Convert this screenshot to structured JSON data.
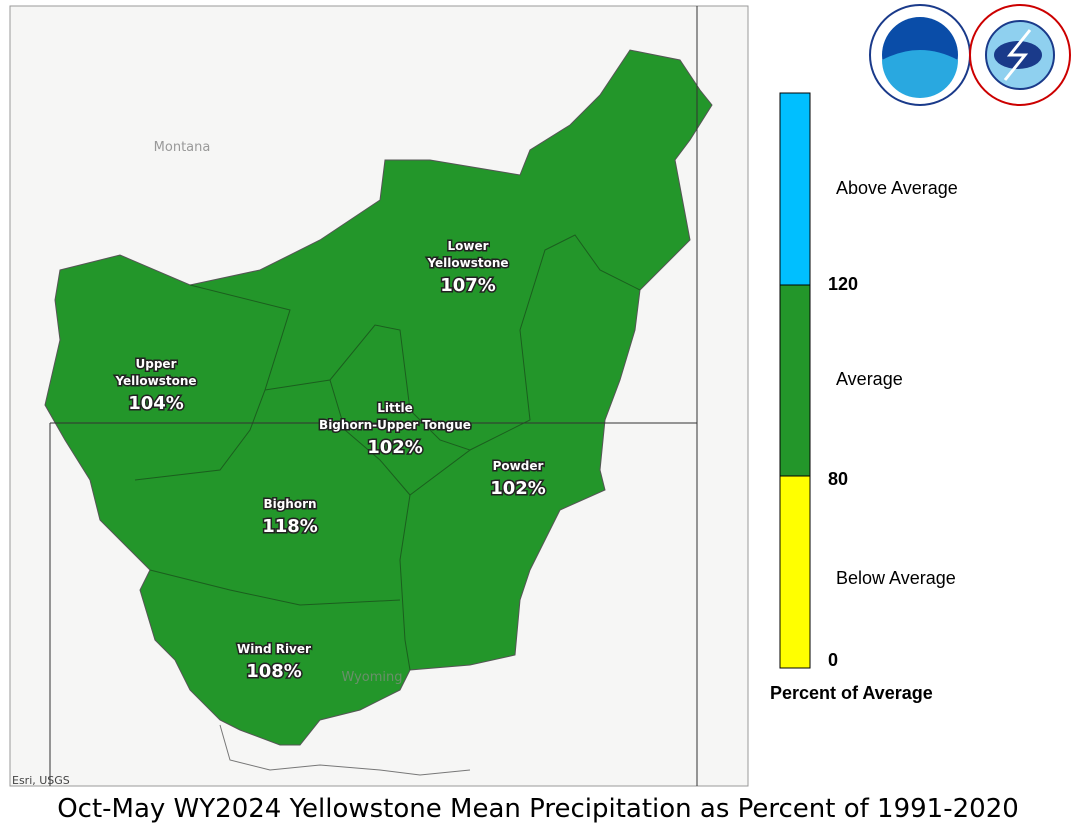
{
  "title": "Oct-May WY2024 Yellowstone Mean Precipitation as Percent of 1991-2020",
  "map": {
    "states": [
      "Montana",
      "Wyoming"
    ],
    "attribution": "Esri, USGS",
    "regions": [
      {
        "name": [
          "Lower",
          "Yellowstone"
        ],
        "value": "107%"
      },
      {
        "name": [
          "Upper",
          "Yellowstone"
        ],
        "value": "104%"
      },
      {
        "name": [
          "Little",
          "Bighorn-Upper Tongue"
        ],
        "value": "102%"
      },
      {
        "name": [
          "Powder"
        ],
        "value": "102%"
      },
      {
        "name": [
          "Bighorn"
        ],
        "value": "118%"
      },
      {
        "name": [
          "Wind River"
        ],
        "value": "108%"
      }
    ]
  },
  "legend": {
    "title": "Percent of Average",
    "classes": [
      "Above Average",
      "Average",
      "Below Average"
    ],
    "breaks": [
      "120",
      "80",
      "0"
    ]
  }
}
